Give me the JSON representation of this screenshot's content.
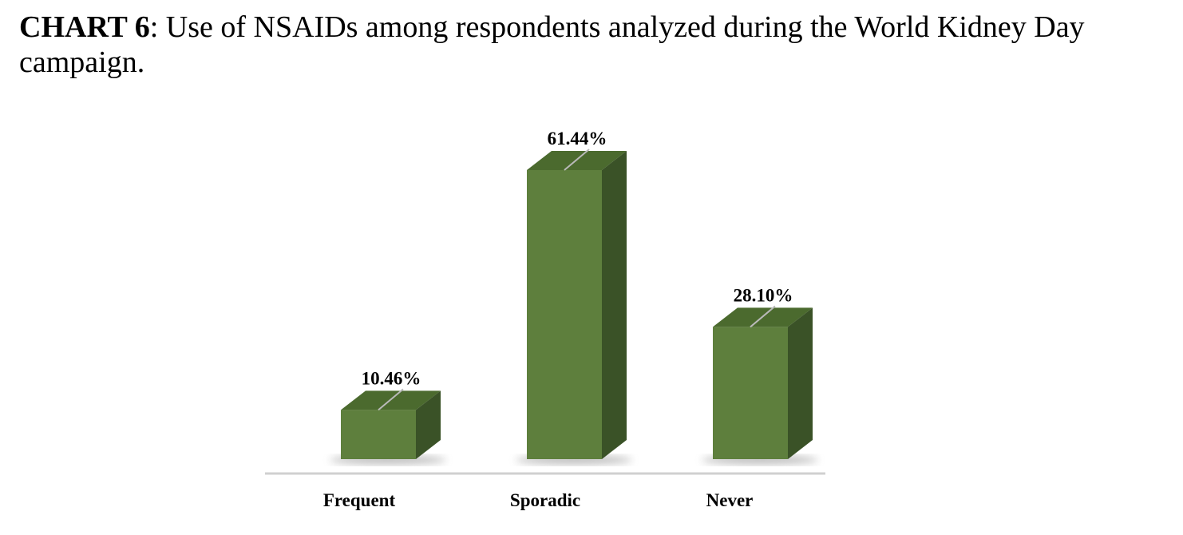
{
  "caption": {
    "label": "CHART 6",
    "text": ": Use of NSAIDs among respondents analyzed during the World Kidney Day campaign."
  },
  "chart_data": {
    "type": "bar",
    "style": "3d-column",
    "categories": [
      "Frequent",
      "Sporadic",
      "Never"
    ],
    "values": [
      10.46,
      61.44,
      28.1
    ],
    "value_labels": [
      "10.46%",
      "61.44%",
      "28.10%"
    ],
    "unit": "%",
    "ylim": [
      0,
      65
    ],
    "grid": false,
    "legend": "none",
    "colors": {
      "front": "#5e7f3d",
      "top": "#4b6a2e",
      "side": "#3a5227",
      "leader": "#b9b9b9",
      "baseline": "#d0d0d0",
      "shadow": "#7a7a7a"
    }
  }
}
